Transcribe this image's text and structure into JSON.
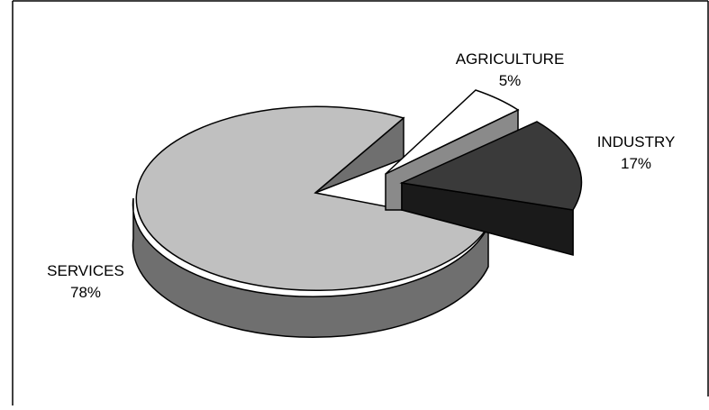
{
  "chart_data": {
    "type": "pie",
    "style": "3d-exploded",
    "slices": [
      {
        "label": "SERVICES",
        "value": 78,
        "value_label": "78%",
        "top_color": "#c0c0c0",
        "side_color": "#6f6f6f"
      },
      {
        "label": "AGRICULTURE",
        "value": 5,
        "value_label": "5%",
        "top_color": "#ffffff",
        "side_color": "#8a8a8a"
      },
      {
        "label": "INDUSTRY",
        "value": 17,
        "value_label": "17%",
        "top_color": "#3a3a3a",
        "side_color": "#1a1a1a"
      }
    ],
    "legend": "none",
    "frame_color": "#000000"
  }
}
